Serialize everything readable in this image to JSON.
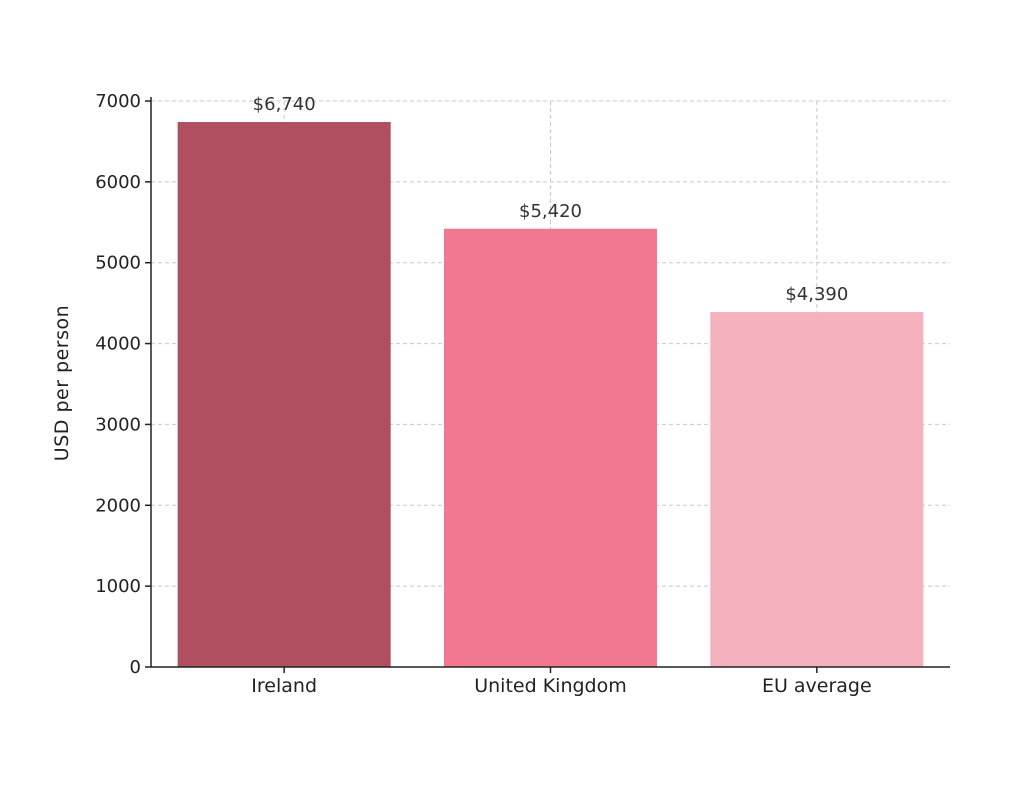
{
  "chart_data": {
    "type": "bar",
    "title": "",
    "xlabel": "",
    "ylabel": "USD per person",
    "categories": [
      "Ireland",
      "United Kingdom",
      "EU average"
    ],
    "values": [
      6740,
      5420,
      4390
    ],
    "data_labels": [
      "$6,740",
      "$5,420",
      "$4,390"
    ],
    "colors": [
      "#b04f5f",
      "#f27891",
      "#f5b1bd"
    ],
    "ylim": [
      0,
      7000
    ],
    "yticks": [
      0,
      1000,
      2000,
      3000,
      4000,
      5000,
      6000,
      7000
    ],
    "ytick_labels": [
      "0",
      "1000",
      "2000",
      "3000",
      "4000",
      "5000",
      "6000",
      "7000"
    ],
    "grid": true,
    "grid_style": "dashed",
    "legend": "none"
  }
}
